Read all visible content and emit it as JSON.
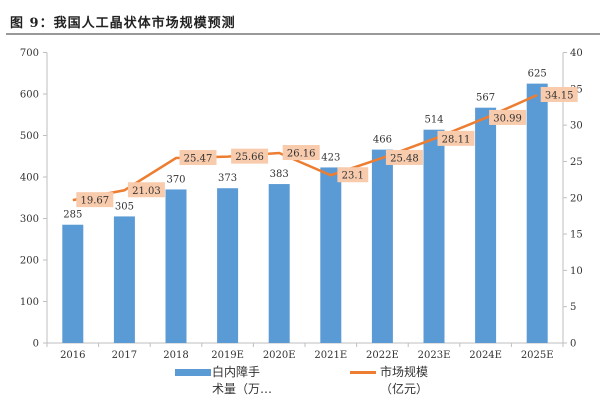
{
  "title": "图 9：我国人工晶状体市场规模预测",
  "colors": {
    "bar": "#5b9bd5",
    "line": "#ed7d31",
    "label_bg": "#f8cbad",
    "axis": "#bfbfbf"
  },
  "chart_data": {
    "type": "bar+line",
    "title": "图 9：我国人工晶状体市场规模预测",
    "categories": [
      "2016",
      "2017",
      "2018",
      "2019E",
      "2020E",
      "2021E",
      "2022E",
      "2023E",
      "2024E",
      "2025E"
    ],
    "series": [
      {
        "name": "白内障手术量（万…",
        "legend_lines": [
          "白内障手",
          "术量（万…"
        ],
        "type": "bar",
        "axis": "left",
        "values": [
          285,
          305,
          370,
          373,
          383,
          423,
          466,
          514,
          567,
          625
        ]
      },
      {
        "name": "市场规模（亿元）",
        "legend_lines": [
          "市场规模",
          "（亿元）"
        ],
        "type": "line",
        "axis": "right",
        "values": [
          19.67,
          21.03,
          25.47,
          25.66,
          26.16,
          23.1,
          25.48,
          28.11,
          30.99,
          34.15
        ]
      }
    ],
    "y_left": {
      "range": [
        0,
        700
      ],
      "ticks": [
        0,
        100,
        200,
        300,
        400,
        500,
        600,
        700
      ]
    },
    "y_right": {
      "range": [
        0,
        40
      ],
      "ticks": [
        0,
        5,
        10,
        15,
        20,
        25,
        30,
        35,
        40
      ]
    },
    "grid": false,
    "legend": "bottom"
  }
}
